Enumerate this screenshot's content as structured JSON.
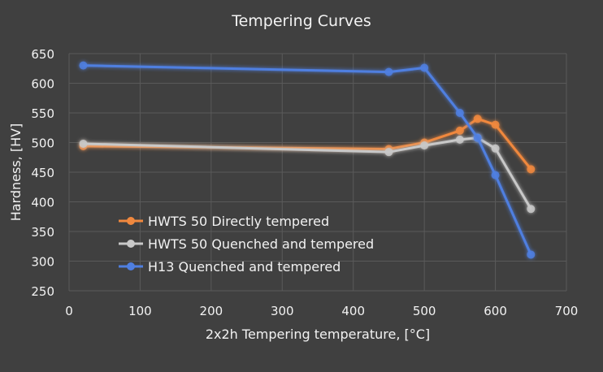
{
  "chart_data": {
    "type": "line",
    "title": "Tempering Curves",
    "xlabel": "2x2h Tempering temperature, [°C]",
    "ylabel": "Hardness, [HV]",
    "xlim": [
      0,
      700
    ],
    "ylim": [
      250,
      650
    ],
    "xticks": [
      0,
      100,
      200,
      300,
      400,
      500,
      600,
      700
    ],
    "yticks": [
      250,
      300,
      350,
      400,
      450,
      500,
      550,
      600,
      650
    ],
    "grid": true,
    "legend_position": "center-left",
    "series": [
      {
        "name": "HWTS 50 Directly tempered",
        "color": "#f0883e",
        "x": [
          20,
          450,
          500,
          550,
          575,
          600,
          650
        ],
        "y": [
          494,
          489,
          500,
          520,
          540,
          530,
          455
        ]
      },
      {
        "name": "HWTS 50 Quenched and tempered",
        "color": "#c8c8c8",
        "x": [
          20,
          450,
          500,
          550,
          575,
          600,
          650
        ],
        "y": [
          498,
          484,
          495,
          505,
          508,
          490,
          388
        ]
      },
      {
        "name": "H13 Quenched and tempered",
        "color": "#4f7fe0",
        "x": [
          20,
          450,
          500,
          550,
          575,
          600,
          650
        ],
        "y": [
          630,
          619,
          626,
          550,
          508,
          445,
          311
        ]
      }
    ]
  }
}
